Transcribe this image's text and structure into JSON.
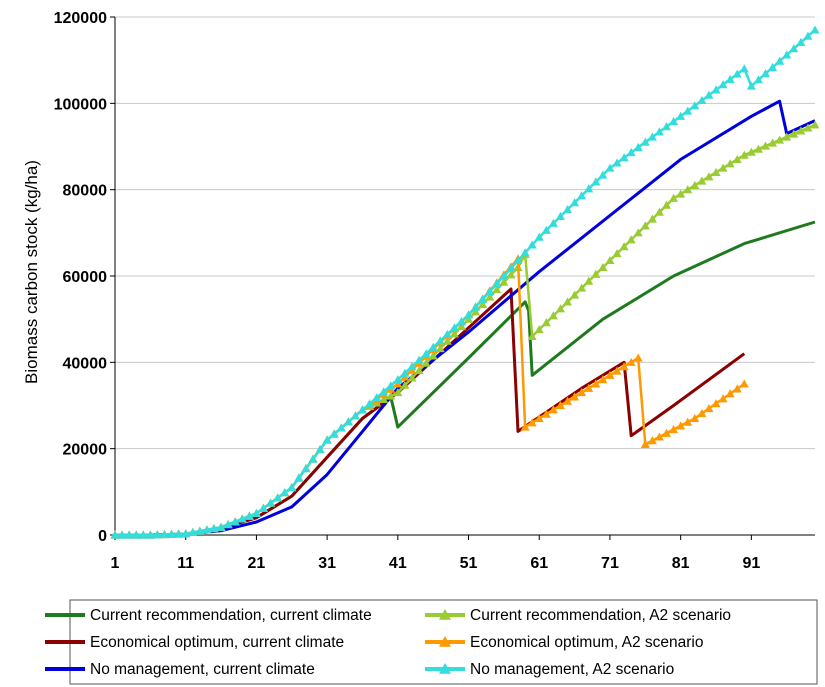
{
  "chart_data": {
    "type": "line",
    "title": "",
    "xlabel": "",
    "ylabel": "Biomass carbon stock (kg/ha)",
    "xlim": [
      1,
      100
    ],
    "ylim": [
      0,
      120000
    ],
    "x_ticks": [
      1,
      11,
      21,
      31,
      41,
      51,
      61,
      71,
      81,
      91
    ],
    "y_ticks": [
      0,
      20000,
      40000,
      60000,
      80000,
      100000,
      120000
    ],
    "x_tick_labels": [
      "1",
      "11",
      "21",
      "31",
      "41",
      "51",
      "61",
      "71",
      "81",
      "91"
    ],
    "y_tick_labels": [
      "0",
      "20000",
      "40000",
      "60000",
      "80000",
      "100000",
      "120000"
    ],
    "grid": "horizontal",
    "legend_position": "bottom",
    "series": [
      {
        "name": "Current recommendation, current climate",
        "color": "#1f7a1f",
        "marker": "none",
        "points": [
          [
            1,
            0
          ],
          [
            6,
            0
          ],
          [
            11,
            200
          ],
          [
            16,
            1500
          ],
          [
            21,
            4000
          ],
          [
            26,
            9000
          ],
          [
            31,
            18000
          ],
          [
            36,
            27000
          ],
          [
            40,
            32000
          ],
          [
            41,
            25000
          ],
          [
            51,
            41000
          ],
          [
            59,
            54000
          ],
          [
            59.5,
            52000
          ],
          [
            60,
            37000
          ],
          [
            70,
            50000
          ],
          [
            80,
            60000
          ],
          [
            90,
            67500
          ],
          [
            100,
            72500
          ]
        ]
      },
      {
        "name": "Current recommendation, A2 scenario",
        "color": "#99cc33",
        "marker": "triangle",
        "points": [
          [
            1,
            0
          ],
          [
            6,
            0
          ],
          [
            11,
            300
          ],
          [
            16,
            1800
          ],
          [
            21,
            5000
          ],
          [
            26,
            11000
          ],
          [
            31,
            22000
          ],
          [
            36,
            29000
          ],
          [
            41,
            33000
          ],
          [
            51,
            50000
          ],
          [
            58,
            62000
          ],
          [
            59,
            65000
          ],
          [
            60,
            46000
          ],
          [
            70,
            62000
          ],
          [
            80,
            78000
          ],
          [
            90,
            88000
          ],
          [
            100,
            95000
          ]
        ]
      },
      {
        "name": "Economical optimum, current climate",
        "color": "#8b0000",
        "marker": "none",
        "points": [
          [
            1,
            0
          ],
          [
            6,
            0
          ],
          [
            11,
            200
          ],
          [
            16,
            1500
          ],
          [
            21,
            4000
          ],
          [
            26,
            9000
          ],
          [
            31,
            18000
          ],
          [
            36,
            27000
          ],
          [
            41,
            33000
          ],
          [
            51,
            48000
          ],
          [
            57,
            57000
          ],
          [
            58,
            24000
          ],
          [
            67,
            34000
          ],
          [
            73,
            40000
          ],
          [
            74,
            23000
          ],
          [
            80,
            30000
          ],
          [
            90,
            42000
          ]
        ]
      },
      {
        "name": "Economical optimum, A2 scenario",
        "color": "#ff9900",
        "marker": "triangle",
        "points": [
          [
            1,
            0
          ],
          [
            6,
            0
          ],
          [
            11,
            300
          ],
          [
            16,
            1800
          ],
          [
            21,
            5000
          ],
          [
            26,
            11000
          ],
          [
            31,
            22000
          ],
          [
            36,
            29000
          ],
          [
            41,
            35000
          ],
          [
            51,
            51000
          ],
          [
            58,
            64000
          ],
          [
            59,
            25000
          ],
          [
            67,
            33000
          ],
          [
            75,
            41000
          ],
          [
            76,
            21000
          ],
          [
            83,
            27000
          ],
          [
            90,
            35000
          ]
        ]
      },
      {
        "name": "No management, current climate",
        "color": "#0000dd",
        "marker": "none",
        "points": [
          [
            1,
            0
          ],
          [
            6,
            0
          ],
          [
            11,
            200
          ],
          [
            16,
            1000
          ],
          [
            21,
            3000
          ],
          [
            26,
            6500
          ],
          [
            31,
            14000
          ],
          [
            36,
            24000
          ],
          [
            41,
            34000
          ],
          [
            51,
            47000
          ],
          [
            61,
            61000
          ],
          [
            71,
            74000
          ],
          [
            81,
            87000
          ],
          [
            91,
            97000
          ],
          [
            95,
            100500
          ],
          [
            96,
            93000
          ],
          [
            100,
            96000
          ]
        ]
      },
      {
        "name": "No management, A2 scenario",
        "color": "#33dddd",
        "marker": "triangle",
        "points": [
          [
            1,
            0
          ],
          [
            6,
            0
          ],
          [
            11,
            300
          ],
          [
            16,
            1800
          ],
          [
            21,
            5000
          ],
          [
            26,
            11000
          ],
          [
            31,
            22000
          ],
          [
            36,
            29000
          ],
          [
            41,
            36000
          ],
          [
            51,
            51000
          ],
          [
            61,
            69000
          ],
          [
            71,
            85000
          ],
          [
            81,
            97000
          ],
          [
            90,
            108000
          ],
          [
            91,
            104000
          ],
          [
            100,
            117000
          ]
        ]
      }
    ]
  }
}
